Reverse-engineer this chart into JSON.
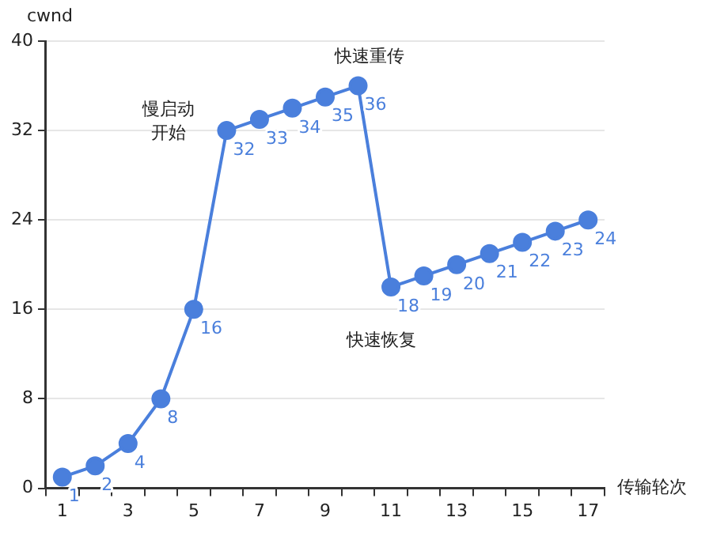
{
  "chart_data": {
    "type": "line",
    "xlabel": "传输轮次",
    "ylabel": "cwnd",
    "x": [
      1,
      2,
      3,
      4,
      5,
      6,
      7,
      8,
      9,
      10,
      11,
      12,
      13,
      14,
      15,
      16,
      17
    ],
    "series": [
      {
        "color": "#4a7fdc",
        "values": [
          1,
          2,
          4,
          8,
          16,
          32,
          33,
          34,
          35,
          36,
          18,
          19,
          20,
          21,
          22,
          23,
          24
        ]
      }
    ],
    "xlim": [
      0.5,
      17.5
    ],
    "xticks": [
      {
        "value": 0.5,
        "label": null
      },
      1,
      {
        "value": 1.5,
        "label": null
      },
      {
        "value": 2.5,
        "label": null
      },
      3,
      {
        "value": 3.5,
        "label": null
      },
      {
        "value": 4.5,
        "label": null
      },
      5,
      {
        "value": 5.5,
        "label": null
      },
      {
        "value": 6.5,
        "label": null
      },
      7,
      {
        "value": 7.5,
        "label": null
      },
      {
        "value": 8.5,
        "label": null
      },
      9,
      {
        "value": 9.5,
        "label": null
      },
      {
        "value": 10.5,
        "label": null
      },
      11,
      {
        "value": 11.5,
        "label": null
      },
      {
        "value": 12.5,
        "label": null
      },
      13,
      {
        "value": 13.5,
        "label": null
      },
      {
        "value": 14.5,
        "label": null
      },
      15,
      {
        "value": 15.5,
        "label": null
      },
      {
        "value": 16.5,
        "label": null
      },
      17,
      {
        "value": 17.5,
        "label": null
      }
    ],
    "ylim": [
      0,
      40
    ],
    "yticks": [
      0,
      8,
      16,
      24,
      32,
      40
    ],
    "grid": "y",
    "marker": "circle",
    "line_style": "solid",
    "data_labels": true,
    "annotations": [
      "慢启动开始",
      "快速重传",
      "快速恢复"
    ]
  }
}
